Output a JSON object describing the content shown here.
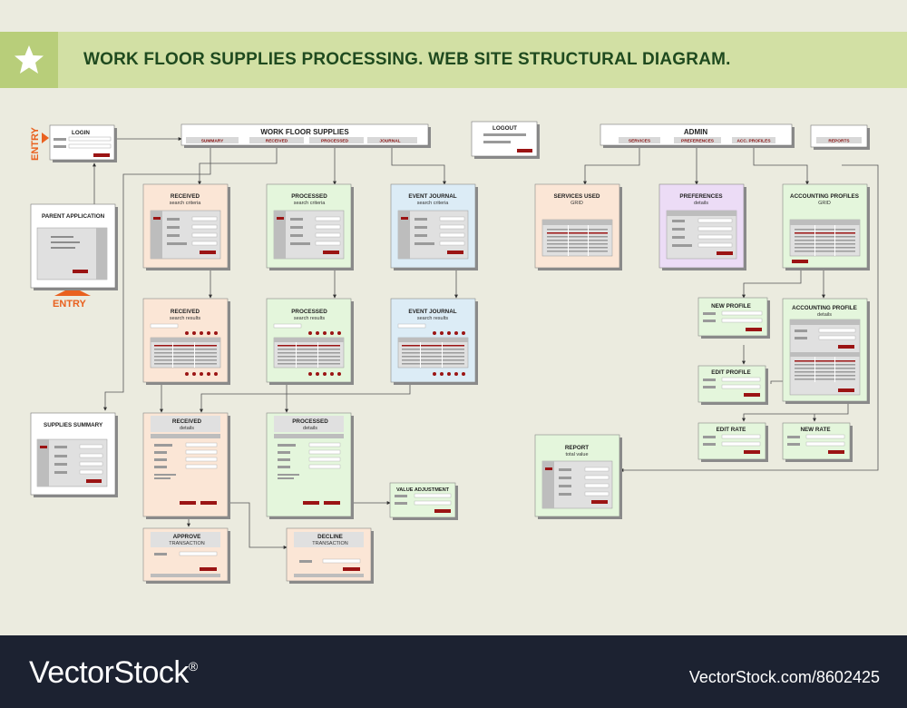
{
  "header": {
    "title": "WORK FLOOR SUPPLIES PROCESSING. WEB SITE STRUCTURAL DIAGRAM.",
    "icon": "star-icon"
  },
  "colors": {
    "title_bar": "#d2e0a4",
    "title_text": "#1f4a1f",
    "entry_orange": "#e9611f",
    "button_red": "#9b1414",
    "peach": "#fbe6d6",
    "green": "#e4f6dc",
    "blue": "#dcecf6",
    "purple": "#ecdcf6"
  },
  "labels": {
    "entry_side": "ENTRY",
    "entry_bottom": "ENTRY",
    "login": "LOGIN",
    "parent_application": "PARENT APPLICATION",
    "logout": "LOGOUT",
    "supplies_summary": "SUPPLIES SUMMARY",
    "reports": "REPORTS"
  },
  "menus": {
    "work_floor": {
      "title": "WORK FLOOR SUPPLIES",
      "tabs": [
        "SUMMARY",
        "RECEIVED",
        "PROCESSED",
        "JOURNAL"
      ]
    },
    "admin": {
      "title": "ADMIN",
      "tabs": [
        "SERVICES",
        "PREFERENCES",
        "ACC. PROFILES"
      ]
    }
  },
  "pages": {
    "received_search": {
      "title": "RECEIVED",
      "sub": "search criteria"
    },
    "processed_search": {
      "title": "PROCESSED",
      "sub": "search criteria"
    },
    "journal_search": {
      "title": "EVENT JOURNAL",
      "sub": "search criteria"
    },
    "services_used": {
      "title": "SERVICES USED",
      "sub": "GRID"
    },
    "preferences": {
      "title": "PREFERENCES",
      "sub": "details"
    },
    "accounting_profiles": {
      "title": "ACCOUNTING PROFILES",
      "sub": "GRID"
    },
    "received_results": {
      "title": "RECEIVED",
      "sub": "search results"
    },
    "processed_results": {
      "title": "PROCESSED",
      "sub": "search results"
    },
    "journal_results": {
      "title": "EVENT JOURNAL",
      "sub": "search results"
    },
    "new_profile": {
      "title": "NEW PROFILE"
    },
    "accounting_profile_details": {
      "title": "ACCOUNTING PROFILE",
      "sub": "details"
    },
    "edit_profile": {
      "title": "EDIT PROFILE"
    },
    "received_details": {
      "title": "RECEIVED",
      "sub": "details"
    },
    "processed_details": {
      "title": "PROCESSED",
      "sub": "details"
    },
    "edit_rate": {
      "title": "EDIT RATE"
    },
    "new_rate": {
      "title": "NEW RATE"
    },
    "report": {
      "title": "REPORT",
      "sub": "total value"
    },
    "value_adjustment": {
      "title": "VALUE ADJUSTMENT"
    },
    "approve": {
      "title": "APPROVE",
      "sub": "TRANSACTION"
    },
    "decline": {
      "title": "DECLINE",
      "sub": "TRANSACTION"
    }
  },
  "footer": {
    "brand": "VectorStock",
    "brand_mark": "®",
    "ref": "VectorStock.com/8602425"
  }
}
